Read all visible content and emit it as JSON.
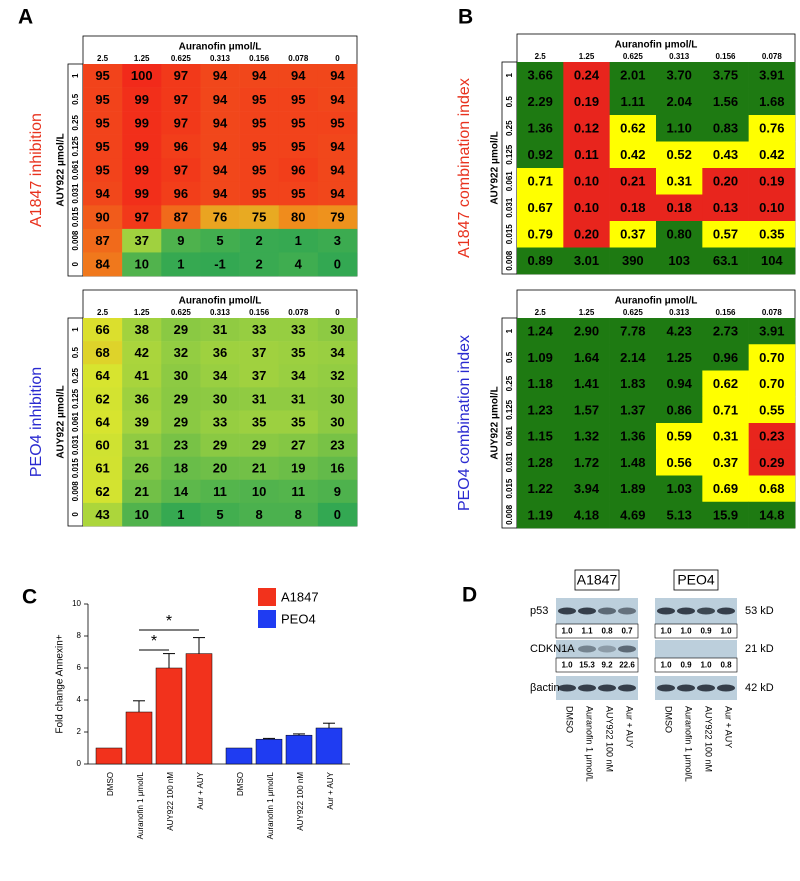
{
  "panel_labels": [
    "A",
    "B",
    "C",
    "D"
  ],
  "heatmaps": [
    {
      "title": "A1847 inhibition",
      "title_color": "#e8321e",
      "x_title": "Auranofin μmol/L",
      "y_title": "AUY922 μmol/L",
      "columns": [
        "2.5",
        "1.25",
        "0.625",
        "0.313",
        "0.156",
        "0.078",
        "0"
      ],
      "rows": [
        "1",
        "0.5",
        "0.25",
        "0.125",
        "0.061",
        "0.031",
        "0.015",
        "0.008",
        "0"
      ],
      "cells": [
        [
          95,
          100,
          97,
          94,
          94,
          94,
          94
        ],
        [
          95,
          99,
          97,
          94,
          95,
          95,
          94
        ],
        [
          95,
          99,
          97,
          94,
          95,
          95,
          95
        ],
        [
          95,
          99,
          96,
          94,
          95,
          95,
          94
        ],
        [
          95,
          99,
          97,
          94,
          95,
          96,
          94
        ],
        [
          94,
          99,
          96,
          94,
          95,
          95,
          94
        ],
        [
          90,
          97,
          87,
          76,
          75,
          80,
          79
        ],
        [
          87,
          37,
          9,
          5,
          2,
          1,
          3
        ],
        [
          84,
          10,
          1,
          -1,
          2,
          4,
          0
        ]
      ],
      "color_stops": [
        [
          0,
          "#33a852"
        ],
        [
          35,
          "#9cd040"
        ],
        [
          65,
          "#d9e52e"
        ],
        [
          80,
          "#f08c1c"
        ],
        [
          100,
          "#f22a1a"
        ]
      ]
    },
    {
      "title": "PEO4 inhibition",
      "title_color": "#2a2ad0",
      "x_title": "Auranofin μmol/L",
      "y_title": "AUY922 μmol/L",
      "columns": [
        "2.5",
        "1.25",
        "0.625",
        "0.313",
        "0.156",
        "0.078",
        "0"
      ],
      "rows": [
        "1",
        "0.5",
        "0.25",
        "0.125",
        "0.061",
        "0.031",
        "0.015",
        "0.008",
        "0"
      ],
      "cells": [
        [
          66,
          38,
          29,
          31,
          33,
          33,
          30
        ],
        [
          68,
          42,
          32,
          36,
          37,
          35,
          34
        ],
        [
          64,
          41,
          30,
          34,
          37,
          34,
          32
        ],
        [
          62,
          36,
          29,
          30,
          31,
          31,
          30
        ],
        [
          64,
          39,
          29,
          33,
          35,
          35,
          30
        ],
        [
          60,
          31,
          23,
          29,
          29,
          27,
          23
        ],
        [
          61,
          26,
          18,
          20,
          21,
          19,
          16
        ],
        [
          62,
          21,
          14,
          11,
          10,
          11,
          9
        ],
        [
          43,
          10,
          1,
          5,
          8,
          8,
          0
        ]
      ],
      "color_stops": [
        [
          0,
          "#33a852"
        ],
        [
          35,
          "#9cd040"
        ],
        [
          65,
          "#d9e52e"
        ],
        [
          80,
          "#f08c1c"
        ],
        [
          100,
          "#f22a1a"
        ]
      ]
    },
    {
      "title": "A1847 combination index",
      "title_color": "#e8321e",
      "x_title": "Auranofin μmol/L",
      "y_title": "AUY922 μmol/L",
      "columns": [
        "2.5",
        "1.25",
        "0.625",
        "0.313",
        "0.156",
        "0.078"
      ],
      "rows": [
        "1",
        "0.5",
        "0.25",
        "0.125",
        "0.061",
        "0.031",
        "0.015",
        "0.008"
      ],
      "cells": [
        [
          "3.66",
          "0.24",
          "2.01",
          "3.70",
          "3.75",
          "3.91"
        ],
        [
          "2.29",
          "0.19",
          "1.11",
          "2.04",
          "1.56",
          "1.68"
        ],
        [
          "1.36",
          "0.12",
          "0.62",
          "1.10",
          "0.83",
          "0.76"
        ],
        [
          "0.92",
          "0.11",
          "0.42",
          "0.52",
          "0.43",
          "0.42"
        ],
        [
          "0.71",
          "0.10",
          "0.21",
          "0.31",
          "0.20",
          "0.19"
        ],
        [
          "0.67",
          "0.10",
          "0.18",
          "0.18",
          "0.13",
          "0.10"
        ],
        [
          "0.79",
          "0.20",
          "0.37",
          "0.80",
          "0.57",
          "0.35"
        ],
        [
          "0.89",
          "3.01",
          "390",
          "103",
          "63.1",
          "104"
        ]
      ],
      "color_bands": {
        "thresholds": [
          0.3,
          0.8
        ],
        "colors": [
          "#e8251d",
          "#ffff00",
          "#1e7a12"
        ]
      }
    },
    {
      "title": "PEO4 combination index",
      "title_color": "#2a2ad0",
      "x_title": "Auranofin μmol/L",
      "y_title": "AUY922 μmol/L",
      "columns": [
        "2.5",
        "1.25",
        "0.625",
        "0.313",
        "0.156",
        "0.078"
      ],
      "rows": [
        "1",
        "0.5",
        "0.25",
        "0.125",
        "0.061",
        "0.031",
        "0.015",
        "0.008"
      ],
      "cells": [
        [
          "1.24",
          "2.90",
          "7.78",
          "4.23",
          "2.73",
          "3.91"
        ],
        [
          "1.09",
          "1.64",
          "2.14",
          "1.25",
          "0.96",
          "0.70"
        ],
        [
          "1.18",
          "1.41",
          "1.83",
          "0.94",
          "0.62",
          "0.70"
        ],
        [
          "1.23",
          "1.57",
          "1.37",
          "0.86",
          "0.71",
          "0.55"
        ],
        [
          "1.15",
          "1.32",
          "1.36",
          "0.59",
          "0.31",
          "0.23"
        ],
        [
          "1.28",
          "1.72",
          "1.48",
          "0.56",
          "0.37",
          "0.29"
        ],
        [
          "1.22",
          "3.94",
          "1.89",
          "1.03",
          "0.69",
          "0.68"
        ],
        [
          "1.19",
          "4.18",
          "4.69",
          "5.13",
          "15.9",
          "14.8"
        ]
      ],
      "color_bands": {
        "thresholds": [
          0.3,
          0.8
        ],
        "colors": [
          "#e8251d",
          "#ffff00",
          "#1e7a12"
        ]
      }
    }
  ],
  "chart_data": {
    "type": "bar",
    "y_label": "Fold change Annexin+",
    "categories": [
      "DMSO",
      "Auranofin 1 μmol/L",
      "AUY922 100 nM",
      "Aur + AUY"
    ],
    "series": [
      {
        "name": "A1847",
        "color": "#f2321c",
        "values": [
          1,
          3.25,
          6.0,
          6.9
        ],
        "errors": [
          0,
          0.7,
          0.9,
          1.0
        ]
      },
      {
        "name": "PEO4",
        "color": "#1f3cf2",
        "values": [
          1.0,
          1.55,
          1.8,
          2.25
        ],
        "errors": [
          0,
          0.05,
          0.08,
          0.3
        ]
      }
    ],
    "ylim": [
      0,
      10
    ],
    "yticks": [
      0,
      2,
      4,
      6,
      8,
      10
    ],
    "annotations": [
      "*",
      "*"
    ]
  },
  "western_blot": {
    "cell_lines": [
      "A1847",
      "PEO4"
    ],
    "lanes": [
      "DMSO",
      "Auranofin 1 μmol/L",
      "AUY922 100 nM",
      "Aur + AUY"
    ],
    "proteins": [
      {
        "name": "p53",
        "size": "53 kD",
        "quant": [
          [
            "1.0",
            "1.1",
            "0.8",
            "0.7"
          ],
          [
            "1.0",
            "1.0",
            "0.9",
            "1.0"
          ]
        ]
      },
      {
        "name": "CDKN1A",
        "size": "21 kD",
        "quant": [
          [
            "1.0",
            "15.3",
            "9.2",
            "22.6"
          ],
          [
            "1.0",
            "0.9",
            "1.0",
            "0.8"
          ]
        ]
      },
      {
        "name": "βactin",
        "size": "42 kD"
      }
    ]
  }
}
